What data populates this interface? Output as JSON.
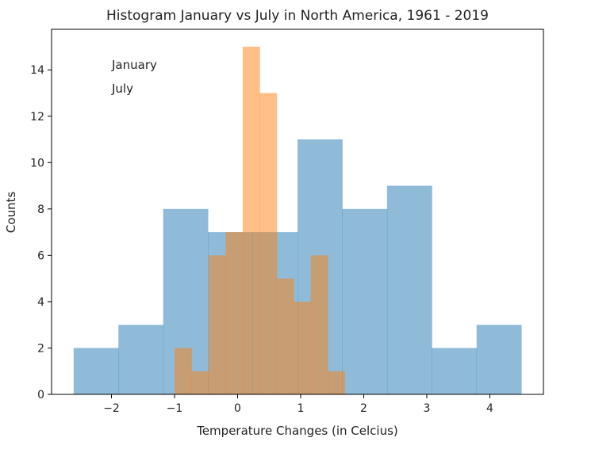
{
  "chart_data": {
    "type": "bar",
    "title": "Histogram January vs July in North America, 1961 - 2019",
    "xlabel": "Temperature Changes (in Celcius)",
    "ylabel": "Counts",
    "xlim": [
      -2.95,
      4.85
    ],
    "ylim": [
      0,
      15.75
    ],
    "x_ticks": [
      -2,
      -1,
      0,
      1,
      2,
      3,
      4
    ],
    "x_tick_labels": [
      "−2",
      "−1",
      "0",
      "1",
      "2",
      "3",
      "4"
    ],
    "y_ticks": [
      0,
      2,
      4,
      6,
      8,
      10,
      12,
      14
    ],
    "y_tick_labels": [
      "0",
      "2",
      "4",
      "6",
      "8",
      "10",
      "12",
      "14"
    ],
    "grid": false,
    "legend_position": "top-left",
    "series": [
      {
        "name": "January",
        "color": "#1f77b4",
        "opacity": 0.5,
        "bin_edges": [
          -2.6,
          -1.89,
          -1.18,
          -0.47,
          0.24,
          0.95,
          1.66,
          2.37,
          3.08,
          3.79,
          4.5
        ],
        "counts": [
          2,
          3,
          8,
          7,
          7,
          11,
          8,
          9,
          2,
          3
        ]
      },
      {
        "name": "July",
        "color": "#ff7f0e",
        "opacity": 0.5,
        "bin_edges": [
          -1.0,
          -0.73,
          -0.46,
          -0.19,
          0.08,
          0.35,
          0.62,
          0.89,
          1.16,
          1.43,
          1.7
        ],
        "counts": [
          2,
          1,
          6,
          7,
          15,
          13,
          5,
          4,
          6,
          1
        ]
      }
    ],
    "annotations": [
      {
        "text": "January",
        "color": "#0000ff"
      },
      {
        "text": "July",
        "color": "#ffa500"
      }
    ]
  }
}
